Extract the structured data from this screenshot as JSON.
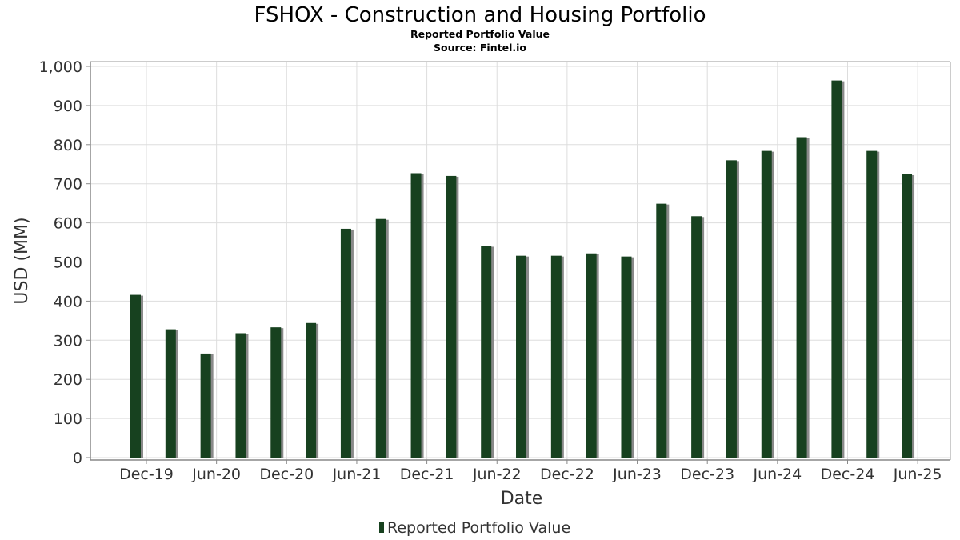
{
  "chart_data": {
    "type": "bar",
    "title": "FSHOX - Construction and Housing Portfolio",
    "subtitle": "Reported Portfolio Value",
    "source": "Source: Fintel.io",
    "xlabel": "Date",
    "ylabel": "USD (MM)",
    "ylim": [
      0,
      1000
    ],
    "yticks": [
      0,
      100,
      200,
      300,
      400,
      500,
      600,
      700,
      800,
      900,
      1000
    ],
    "ytick_labels": [
      "0",
      "100",
      "200",
      "300",
      "400",
      "500",
      "600",
      "700",
      "800",
      "900",
      "1,000"
    ],
    "xtick_labels": [
      "Dec-19",
      "Jun-20",
      "Dec-20",
      "Jun-21",
      "Dec-21",
      "Jun-22",
      "Dec-22",
      "Jun-23",
      "Dec-23",
      "Jun-24",
      "Dec-24",
      "Jun-25"
    ],
    "grid": true,
    "legend_position": "bottom-center",
    "series": [
      {
        "name": "Reported Portfolio Value",
        "color": "#17411f",
        "values": [
          416,
          328,
          266,
          318,
          333,
          344,
          585,
          610,
          727,
          720,
          541,
          516,
          516,
          522,
          514,
          649,
          617,
          760,
          784,
          819,
          964,
          784,
          724
        ]
      }
    ]
  }
}
